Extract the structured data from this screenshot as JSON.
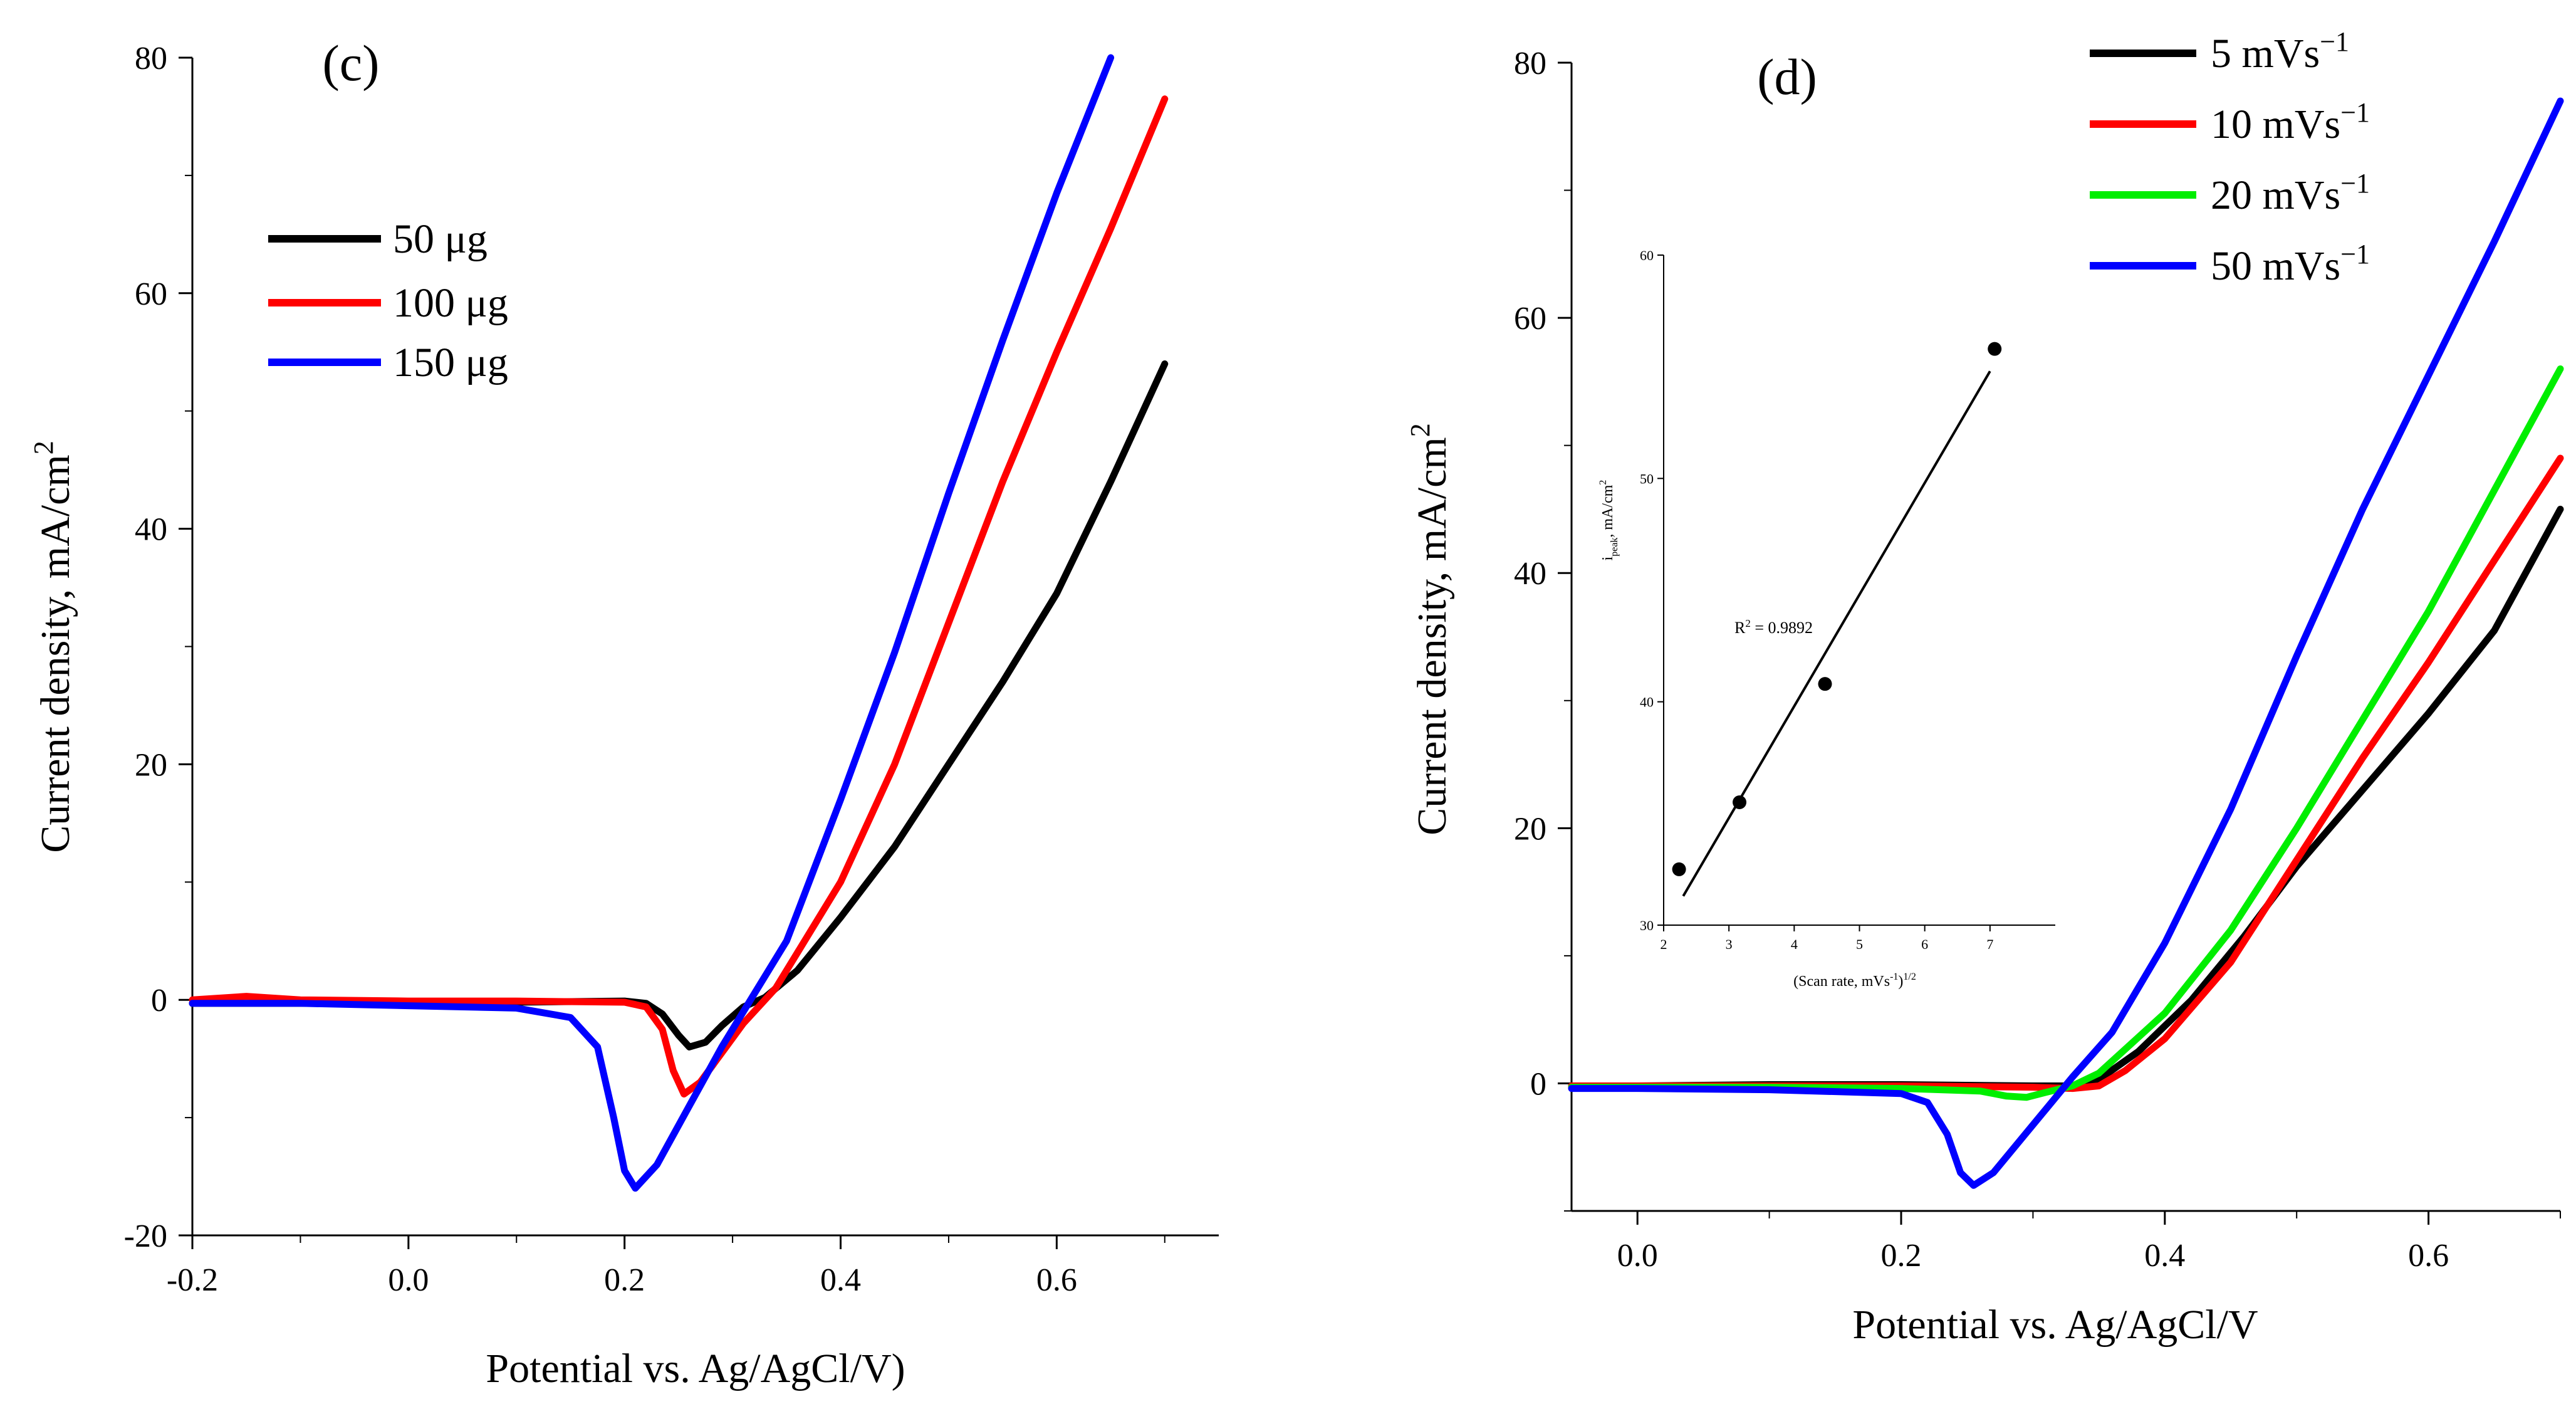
{
  "chart_data": [
    {
      "panel": "c",
      "type": "line",
      "title": "",
      "panel_label": "(c)",
      "xlabel": "Potential vs. Ag/AgCl/V)",
      "ylabel": "Current density, mA/cm",
      "ylabel_sup": "2",
      "xlim": [
        -0.2,
        0.75
      ],
      "ylim": [
        -20,
        80
      ],
      "xticks": [
        -0.2,
        0.0,
        0.2,
        0.4,
        0.6
      ],
      "xtick_labels": [
        "-0.2",
        "0.0",
        "0.2",
        "0.4",
        "0.6"
      ],
      "yticks": [
        -20,
        0,
        20,
        40,
        60,
        80
      ],
      "ytick_labels": [
        "-20",
        "0",
        "20",
        "40",
        "60",
        "80"
      ],
      "legend_position": "top-left",
      "series": [
        {
          "name": "50 μg",
          "color": "#000000",
          "x": [
            -0.2,
            -0.1,
            0.0,
            0.1,
            0.2,
            0.22,
            0.235,
            0.25,
            0.26,
            0.275,
            0.29,
            0.31,
            0.33,
            0.36,
            0.4,
            0.45,
            0.5,
            0.55,
            0.6,
            0.65,
            0.7
          ],
          "y": [
            -0.3,
            -0.3,
            -0.2,
            -0.2,
            -0.1,
            -0.3,
            -1.2,
            -3.0,
            -4.0,
            -3.6,
            -2.2,
            -0.6,
            0.2,
            2.5,
            7.0,
            13.0,
            20.0,
            27.0,
            34.5,
            44.0,
            54.0
          ]
        },
        {
          "name": "100 μg",
          "color": "#ff0000",
          "x": [
            -0.2,
            -0.15,
            -0.1,
            0.0,
            0.1,
            0.2,
            0.22,
            0.235,
            0.245,
            0.255,
            0.27,
            0.29,
            0.31,
            0.34,
            0.4,
            0.45,
            0.5,
            0.55,
            0.6,
            0.65,
            0.7
          ],
          "y": [
            0.0,
            0.3,
            0.0,
            -0.1,
            -0.1,
            -0.2,
            -0.6,
            -2.5,
            -6.0,
            -8.0,
            -7.0,
            -4.5,
            -2.0,
            1.0,
            10.0,
            20.0,
            32.0,
            44.0,
            55.0,
            65.5,
            76.5
          ]
        },
        {
          "name": "150 μg",
          "color": "#0000ff",
          "x": [
            -0.2,
            -0.1,
            0.0,
            0.1,
            0.15,
            0.175,
            0.19,
            0.2,
            0.21,
            0.23,
            0.26,
            0.29,
            0.32,
            0.35,
            0.4,
            0.45,
            0.5,
            0.55,
            0.6,
            0.65
          ],
          "y": [
            -0.3,
            -0.3,
            -0.5,
            -0.7,
            -1.5,
            -4.0,
            -10.0,
            -14.5,
            -16.0,
            -14.0,
            -9.0,
            -4.0,
            0.5,
            5.0,
            17.0,
            29.5,
            43.0,
            56.0,
            68.5,
            80.0
          ]
        }
      ]
    },
    {
      "panel": "d",
      "type": "line",
      "title": "",
      "panel_label": "(d)",
      "xlabel": "Potential vs. Ag/AgCl/V",
      "ylabel": "Current density, mA/cm",
      "ylabel_sup": "2",
      "xlim": [
        -0.05,
        0.7
      ],
      "ylim": [
        -10,
        80
      ],
      "xticks": [
        0.0,
        0.2,
        0.4,
        0.6
      ],
      "xtick_labels": [
        "0.0",
        "0.2",
        "0.4",
        "0.6"
      ],
      "yticks": [
        0,
        20,
        40,
        60,
        80
      ],
      "ytick_labels": [
        "0",
        "20",
        "40",
        "60",
        "80"
      ],
      "legend_position": "top-right",
      "series": [
        {
          "name": "5 mVs",
          "name_sup": "−1",
          "color": "#000000",
          "x": [
            -0.05,
            0.0,
            0.1,
            0.2,
            0.3,
            0.33,
            0.35,
            0.38,
            0.42,
            0.46,
            0.5,
            0.55,
            0.6,
            0.65,
            0.7
          ],
          "y": [
            -0.2,
            -0.2,
            -0.1,
            -0.1,
            -0.2,
            -0.2,
            0.3,
            2.5,
            6.5,
            11.5,
            17.0,
            23.0,
            29.0,
            35.5,
            45.0
          ]
        },
        {
          "name": "10 mVs",
          "name_sup": "−1",
          "color": "#ff0000",
          "x": [
            -0.05,
            0.0,
            0.1,
            0.2,
            0.3,
            0.33,
            0.35,
            0.37,
            0.4,
            0.45,
            0.5,
            0.55,
            0.6,
            0.65,
            0.7
          ],
          "y": [
            -0.2,
            -0.2,
            -0.2,
            -0.2,
            -0.3,
            -0.4,
            -0.2,
            1.0,
            3.5,
            9.5,
            17.5,
            25.5,
            33.0,
            41.0,
            49.0
          ]
        },
        {
          "name": "20 mVs",
          "name_sup": "−1",
          "color": "#00ee00",
          "x": [
            -0.05,
            0.0,
            0.1,
            0.2,
            0.26,
            0.28,
            0.295,
            0.31,
            0.33,
            0.35,
            0.4,
            0.45,
            0.5,
            0.55,
            0.6,
            0.65,
            0.7
          ],
          "y": [
            -0.3,
            -0.3,
            -0.3,
            -0.4,
            -0.6,
            -1.0,
            -1.1,
            -0.7,
            -0.2,
            0.8,
            5.5,
            12.0,
            20.0,
            28.5,
            37.0,
            46.5,
            56.0
          ]
        },
        {
          "name": "50 mVs",
          "name_sup": "−1",
          "color": "#0000ff",
          "x": [
            -0.05,
            0.0,
            0.1,
            0.2,
            0.22,
            0.235,
            0.245,
            0.255,
            0.27,
            0.29,
            0.31,
            0.33,
            0.36,
            0.4,
            0.45,
            0.5,
            0.55,
            0.6,
            0.65,
            0.7
          ],
          "y": [
            -0.4,
            -0.4,
            -0.5,
            -0.8,
            -1.5,
            -4.0,
            -7.0,
            -8.0,
            -7.0,
            -4.5,
            -2.0,
            0.5,
            4.0,
            11.0,
            21.5,
            33.5,
            45.0,
            55.5,
            66.0,
            77.0
          ]
        }
      ],
      "inset": {
        "type": "scatter",
        "xlabel": "(Scan rate, mVs",
        "xlabel_sup": "-1",
        "xlabel_tail": ")",
        "xlabel_sup2": "1/2",
        "ylabel_i": "i",
        "ylabel_sub": "peak",
        "ylabel_rest": ", mA/cm",
        "ylabel_sup": "2",
        "annotation": "R",
        "annotation_sup": "2",
        "annotation_tail": " = 0.9892",
        "xlim": [
          2,
          8
        ],
        "ylim": [
          30,
          60
        ],
        "xticks": [
          2,
          3,
          4,
          5,
          6,
          7
        ],
        "xtick_labels": [
          "2",
          "3",
          "4",
          "5",
          "6",
          "7"
        ],
        "yticks": [
          30,
          40,
          50,
          60
        ],
        "ytick_labels": [
          "30",
          "40",
          "50",
          "60"
        ],
        "points_x": [
          2.236,
          3.162,
          4.472,
          7.071
        ],
        "points_y": [
          32.5,
          35.5,
          40.8,
          55.8
        ],
        "fit_x": [
          2.3,
          7.0
        ],
        "fit_y": [
          31.3,
          54.8
        ]
      }
    }
  ]
}
